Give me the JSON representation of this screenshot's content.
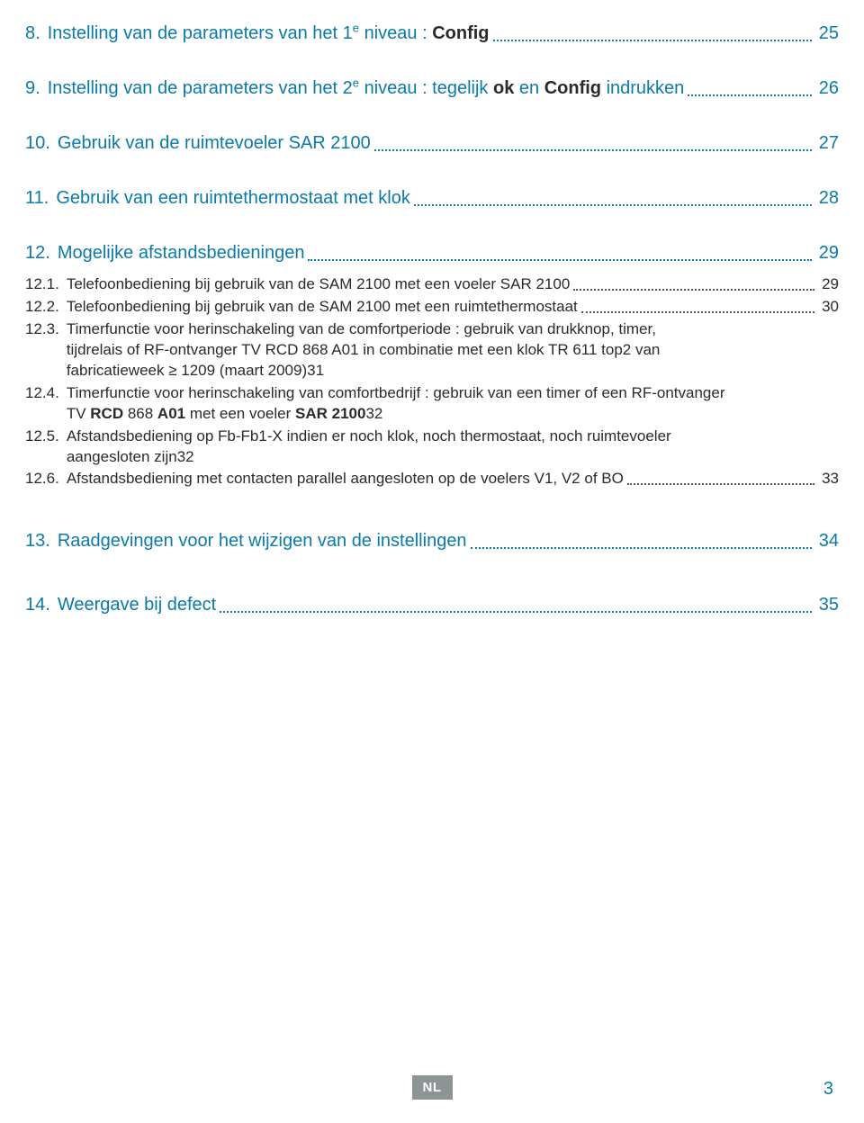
{
  "colors": {
    "heading": "#0a7aa8",
    "body": "#2a2a2a",
    "footer_box_bg": "#8e9396",
    "footer_box_fg": "#ffffff",
    "leader_h1": "#0a7aa8",
    "leader_sub": "#555555",
    "background": "#ffffff"
  },
  "typography": {
    "h1_fontsize": 20,
    "sub_fontsize": 17,
    "footer_fontsize": 15,
    "pagenum_fontsize": 20,
    "font_family": "Arial"
  },
  "toc": {
    "e8": {
      "num": "8.",
      "pre": "Instelling van de parameters van het 1",
      "sup": "e",
      "mid": " niveau : ",
      "bold": "Config",
      "page": "25"
    },
    "e9": {
      "num": "9.",
      "pre": "Instelling van de parameters van het 2",
      "sup": "e",
      "mid": " niveau : tegelijk ",
      "bold1": "ok",
      "mid2": " en ",
      "bold2": "Config",
      "post": " indrukken",
      "page": "26"
    },
    "e10": {
      "num": "10.",
      "txt": "Gebruik van de ruimtevoeler SAR 2100",
      "page": "27"
    },
    "e11": {
      "num": "11.",
      "txt": "Gebruik van een ruimtethermostaat met klok",
      "page": "28"
    },
    "e12": {
      "num": "12.",
      "txt": "Mogelijke afstandsbedieningen",
      "page": "29"
    },
    "e12_1": {
      "num": "12.1.",
      "txt": "Telefoonbediening bij gebruik van de SAM 2100 met een voeler SAR 2100",
      "page": "29"
    },
    "e12_2": {
      "num": "12.2.",
      "txt": "Telefoonbediening bij gebruik van de SAM 2100 met een ruimtethermostaat",
      "page": "30"
    },
    "e12_3": {
      "num": "12.3.",
      "l1": "Timerfunctie voor herinschakeling van de comfortperiode : gebruik van drukknop, timer,",
      "l2": "tijdrelais of RF-ontvanger TV RCD 868 A01 in combinatie met een klok TR 611 top2 van",
      "l3": "fabricatieweek ≥ 1209 (maart 2009)",
      "page": "31"
    },
    "e12_4": {
      "num": "12.4.",
      "l1_pre": "Timerfunctie voor herinschakeling van comfortbedrijf : gebruik van een timer of een RF-ontvanger",
      "l2_pre": "TV ",
      "l2_b1": "RCD",
      "l2_mid1": " 868 ",
      "l2_b2": "A01",
      "l2_mid2": " met een voeler ",
      "l2_b3": "SAR 2100",
      "page": "32"
    },
    "e12_5": {
      "num": "12.5.",
      "l1": "Afstandsbediening op Fb-Fb1-X indien er noch klok, noch thermostaat, noch ruimtevoeler",
      "l2": "aangesloten zijn",
      "page": "32"
    },
    "e12_6": {
      "num": "12.6.",
      "txt": "Afstandsbediening met contacten parallel aangesloten op de voelers V1, V2 of BO",
      "page": "33"
    },
    "e13": {
      "num": "13.",
      "txt": "Raadgevingen voor het wijzigen van de instellingen",
      "page": "34"
    },
    "e14": {
      "num": "14.",
      "txt": "Weergave bij defect",
      "page": "35"
    }
  },
  "footer": {
    "lang": "NL",
    "page": "3"
  }
}
